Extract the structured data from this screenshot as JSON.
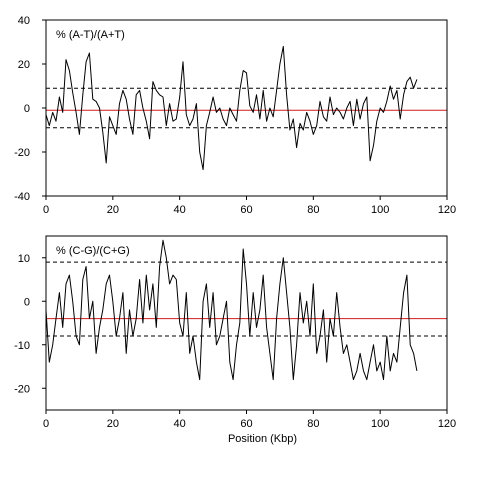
{
  "chart_data": [
    {
      "type": "line",
      "title": "% (A-T)/(A+T)",
      "xlabel": "",
      "ylabel": "",
      "xlim": [
        0,
        120
      ],
      "ylim": [
        -40,
        40
      ],
      "xticks": [
        0,
        20,
        40,
        60,
        80,
        100,
        120
      ],
      "xtick_labels": [
        "0",
        "20",
        "40",
        "60",
        "80",
        "100",
        "120"
      ],
      "yticks": [
        -40,
        -20,
        0,
        20,
        40
      ],
      "ytick_labels": [
        "-40",
        "-20",
        "0",
        "20",
        "40"
      ],
      "grid": false,
      "reference_lines": [
        {
          "y": 9,
          "style": "dashed",
          "color": "#000000"
        },
        {
          "y": -9,
          "style": "dashed",
          "color": "#000000"
        },
        {
          "y": -1,
          "style": "solid",
          "color": "#d01c1c"
        }
      ],
      "series": [
        {
          "color": "#000000",
          "x": [
            0,
            1,
            2,
            3,
            4,
            5,
            6,
            7,
            8,
            9,
            10,
            11,
            12,
            13,
            14,
            15,
            16,
            17,
            18,
            19,
            20,
            21,
            22,
            23,
            24,
            25,
            26,
            27,
            28,
            29,
            30,
            31,
            32,
            33,
            34,
            35,
            36,
            37,
            38,
            39,
            40,
            41,
            42,
            43,
            44,
            45,
            46,
            47,
            48,
            49,
            50,
            51,
            52,
            53,
            54,
            55,
            56,
            57,
            58,
            59,
            60,
            61,
            62,
            63,
            64,
            65,
            66,
            67,
            68,
            69,
            70,
            71,
            72,
            73,
            74,
            75,
            76,
            77,
            78,
            79,
            80,
            81,
            82,
            83,
            84,
            85,
            86,
            87,
            88,
            89,
            90,
            91,
            92,
            93,
            94,
            95,
            96,
            97,
            98,
            99,
            100,
            101,
            102,
            103,
            104,
            105,
            106,
            107,
            108,
            109,
            110,
            111
          ],
          "y": [
            -3,
            -8,
            -2,
            -6,
            5,
            -2,
            22,
            17,
            7,
            -2,
            -12,
            6,
            21,
            25,
            4,
            3,
            0,
            -11,
            -25,
            -4,
            -8,
            -12,
            2,
            8,
            4,
            -5,
            -12,
            6,
            8,
            0,
            -6,
            -14,
            12,
            8,
            6,
            5,
            -8,
            2,
            -6,
            -5,
            5,
            21,
            -3,
            -8,
            -5,
            2,
            -20,
            -28,
            -8,
            -2,
            5,
            -2,
            0,
            -5,
            -8,
            0,
            -3,
            -6,
            8,
            17,
            16,
            1,
            -2,
            6,
            -5,
            8,
            -6,
            0,
            -4,
            8,
            20,
            28,
            6,
            -10,
            -5,
            -18,
            -7,
            -10,
            -2,
            -6,
            -12,
            -8,
            3,
            -4,
            -6,
            5,
            -3,
            0,
            -2,
            -5,
            0,
            3,
            -8,
            4,
            -5,
            2,
            5,
            -24,
            -17,
            -6,
            0,
            -2,
            3,
            10,
            4,
            8,
            -5,
            6,
            12,
            14,
            9,
            13
          ]
        }
      ]
    },
    {
      "type": "line",
      "title": "% (C-G)/(C+G)",
      "xlabel": "Position (Kbp)",
      "ylabel": "",
      "xlim": [
        0,
        120
      ],
      "ylim": [
        -25,
        15
      ],
      "xticks": [
        0,
        20,
        40,
        60,
        80,
        100,
        120
      ],
      "xtick_labels": [
        "0",
        "20",
        "40",
        "60",
        "80",
        "100",
        "120"
      ],
      "yticks": [
        -20,
        -10,
        0,
        10
      ],
      "ytick_labels": [
        "-20",
        "-10",
        "0",
        "10"
      ],
      "grid": false,
      "reference_lines": [
        {
          "y": 9,
          "style": "dashed",
          "color": "#000000"
        },
        {
          "y": -8,
          "style": "dashed",
          "color": "#000000"
        },
        {
          "y": -4,
          "style": "solid",
          "color": "#d01c1c"
        }
      ],
      "series": [
        {
          "color": "#000000",
          "x": [
            0,
            1,
            2,
            3,
            4,
            5,
            6,
            7,
            8,
            9,
            10,
            11,
            12,
            13,
            14,
            15,
            16,
            17,
            18,
            19,
            20,
            21,
            22,
            23,
            24,
            25,
            26,
            27,
            28,
            29,
            30,
            31,
            32,
            33,
            34,
            35,
            36,
            37,
            38,
            39,
            40,
            41,
            42,
            43,
            44,
            45,
            46,
            47,
            48,
            49,
            50,
            51,
            52,
            53,
            54,
            55,
            56,
            57,
            58,
            59,
            60,
            61,
            62,
            63,
            64,
            65,
            66,
            67,
            68,
            69,
            70,
            71,
            72,
            73,
            74,
            75,
            76,
            77,
            78,
            79,
            80,
            81,
            82,
            83,
            84,
            85,
            86,
            87,
            88,
            89,
            90,
            91,
            92,
            93,
            94,
            95,
            96,
            97,
            98,
            99,
            100,
            101,
            102,
            103,
            104,
            105,
            106,
            107,
            108,
            109,
            110,
            111
          ],
          "y": [
            -2,
            -14,
            -10,
            -4,
            2,
            -6,
            4,
            6,
            0,
            -8,
            -10,
            5,
            8,
            -4,
            0,
            -12,
            -6,
            -2,
            4,
            6,
            0,
            -8,
            -4,
            2,
            -12,
            -2,
            -8,
            -4,
            5,
            -5,
            6,
            -2,
            4,
            -6,
            8,
            14,
            10,
            4,
            6,
            5,
            -5,
            -8,
            2,
            -12,
            -8,
            -14,
            -18,
            0,
            4,
            -6,
            2,
            -10,
            -8,
            -4,
            0,
            -14,
            -18,
            -10,
            -5,
            12,
            4,
            -8,
            2,
            -6,
            -2,
            6,
            -6,
            -12,
            -18,
            -4,
            4,
            10,
            2,
            -6,
            -18,
            -10,
            2,
            -5,
            0,
            -8,
            4,
            -12,
            -8,
            -2,
            -14,
            -4,
            -8,
            2,
            -6,
            -12,
            -10,
            -14,
            -18,
            -16,
            -12,
            -16,
            -18,
            -14,
            -10,
            -16,
            -14,
            -18,
            -8,
            -16,
            -12,
            -14,
            -6,
            2,
            6,
            -10,
            -12,
            -16
          ]
        }
      ]
    }
  ]
}
